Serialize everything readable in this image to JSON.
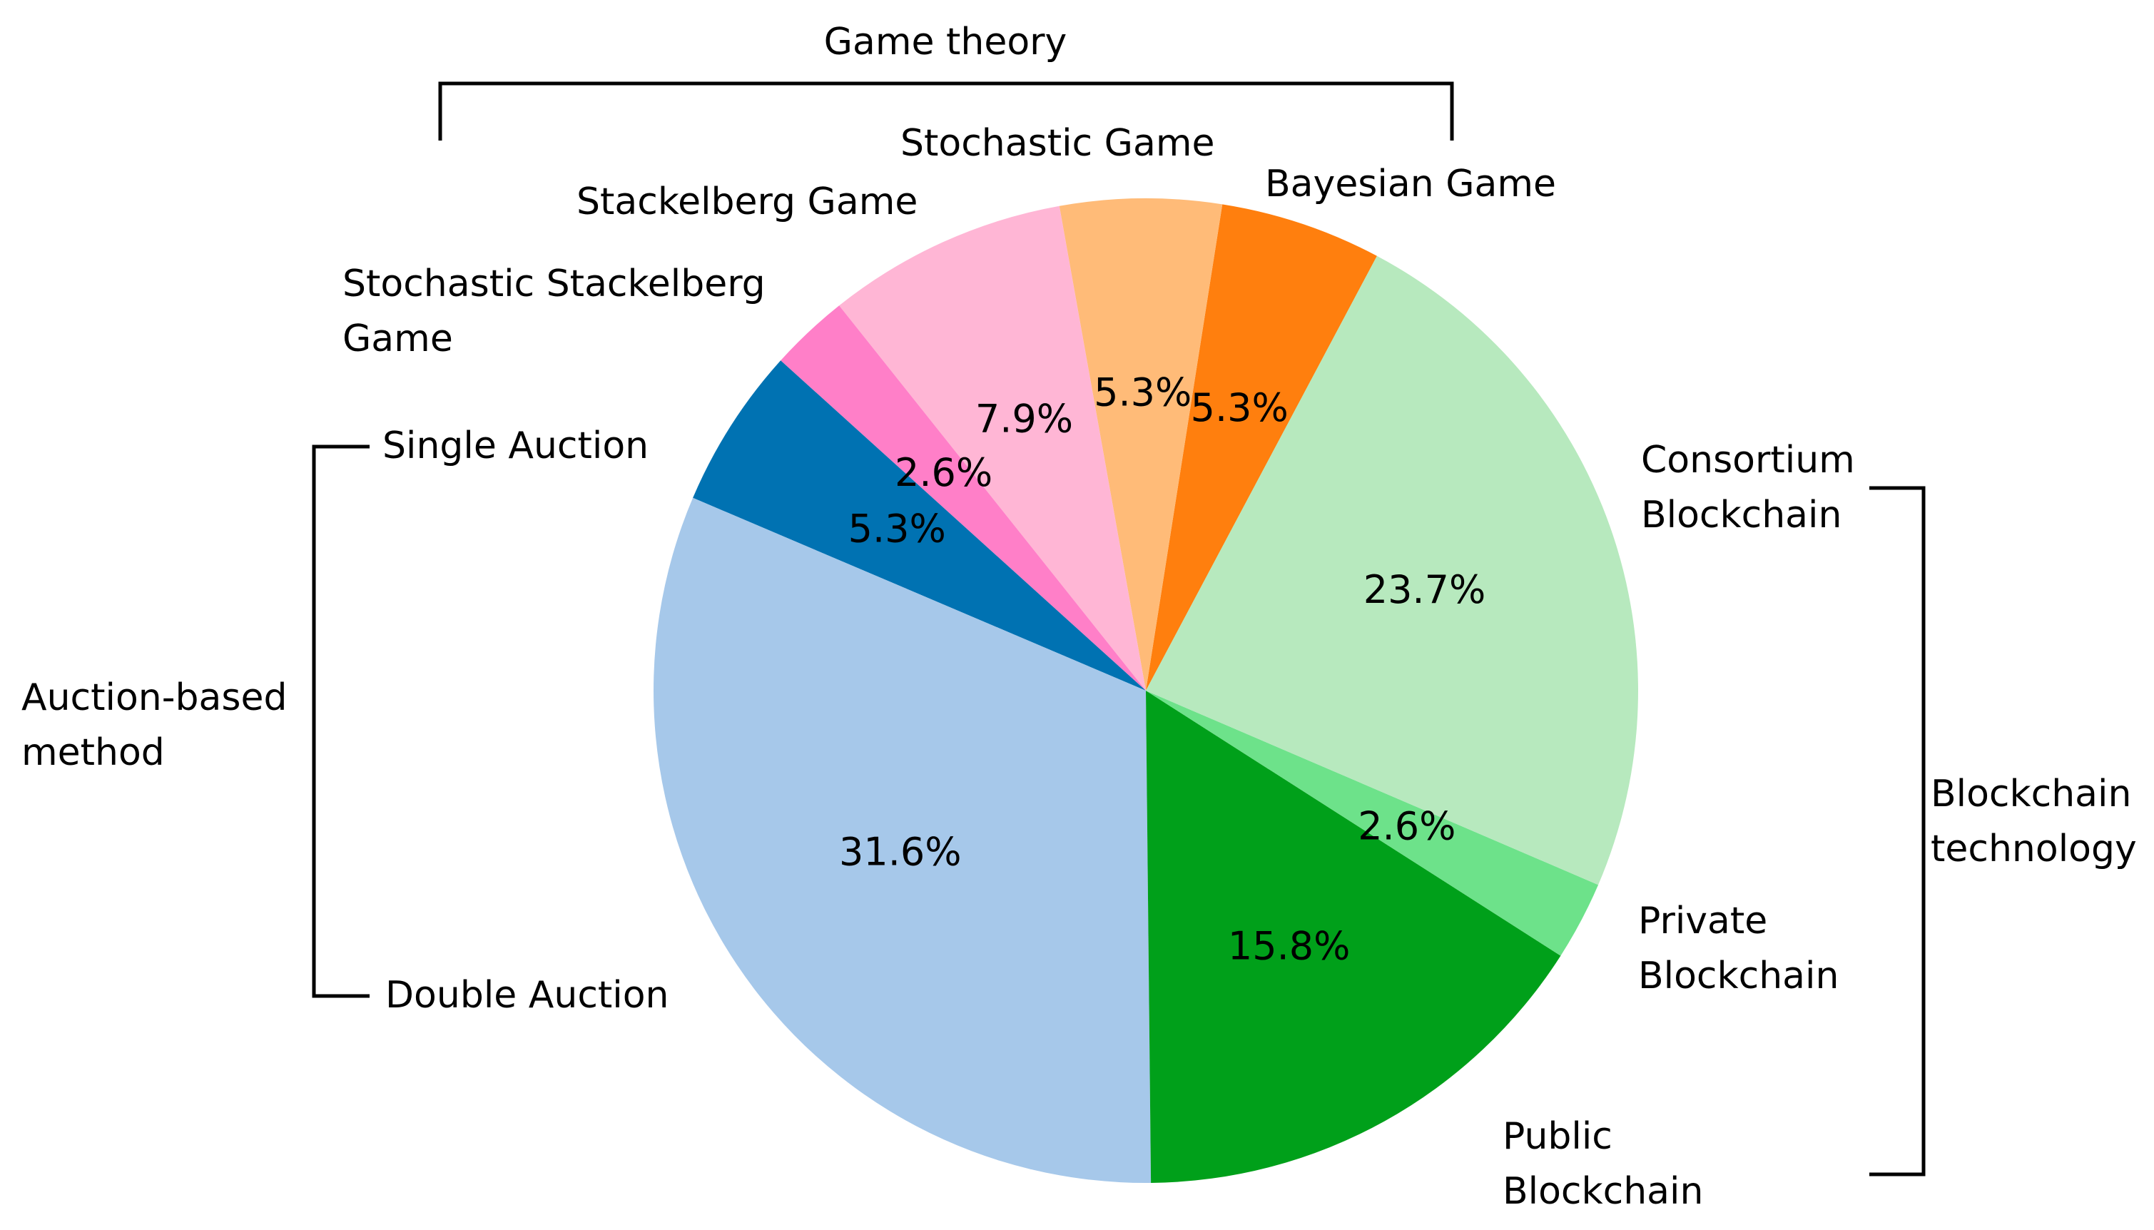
{
  "chart_data": {
    "type": "pie",
    "title": "",
    "slices": [
      {
        "label": "Bayesian Game",
        "value": 5.3,
        "value_label": "5.3%",
        "color": "#ff7f0e"
      },
      {
        "label": "Stochastic Game",
        "value": 5.3,
        "value_label": "5.3%",
        "color": "#ffbb78"
      },
      {
        "label": "Stackelberg Game",
        "value": 7.9,
        "value_label": "7.9%",
        "color": "#ffb6d5"
      },
      {
        "label": "Stochastic Stackelberg Game",
        "value": 2.6,
        "value_label": "2.6%",
        "color": "#ff7fc8"
      },
      {
        "label": "Single Auction",
        "value": 5.3,
        "value_label": "5.3%",
        "color": "#0072b2"
      },
      {
        "label": "Double Auction",
        "value": 31.6,
        "value_label": "31.6%",
        "color": "#a6c8ea"
      },
      {
        "label": "Public Blockchain",
        "value": 15.8,
        "value_label": "15.8%",
        "color": "#00a01a"
      },
      {
        "label": "Private Blockchain",
        "value": 2.6,
        "value_label": "2.6%",
        "color": "#6de28a"
      },
      {
        "label": "Consortium Blockchain",
        "value": 23.7,
        "value_label": "23.7%",
        "color": "#b7e9be"
      }
    ],
    "groups": [
      {
        "name": "Game theory",
        "members": [
          "Stochastic Stackelberg Game",
          "Stackelberg Game",
          "Stochastic Game",
          "Bayesian Game"
        ]
      },
      {
        "name": "Auction-based method",
        "members": [
          "Single Auction",
          "Double Auction"
        ]
      },
      {
        "name": "Blockchain technology",
        "members": [
          "Consortium Blockchain",
          "Private Blockchain",
          "Public Blockchain"
        ]
      }
    ]
  }
}
